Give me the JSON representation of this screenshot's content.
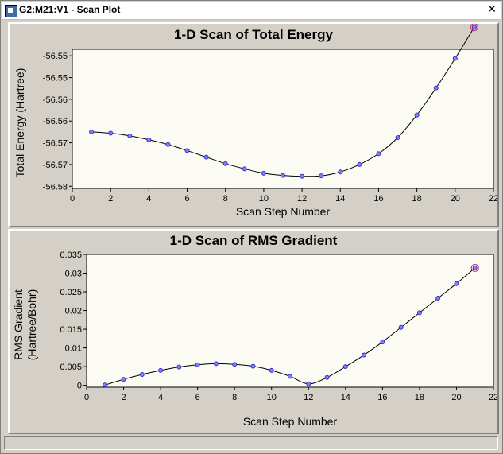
{
  "window": {
    "title": "G2:M21:V1 - Scan Plot",
    "close_label": "✕"
  },
  "chart_data": [
    {
      "type": "line",
      "title": "1-D Scan of Total Energy",
      "xlabel": "Scan Step Number",
      "ylabel": "Total Energy (Hartree)",
      "xlim": [
        0,
        22
      ],
      "ylim": [
        -56.5805,
        -56.5485
      ],
      "x_ticks": [
        0,
        2,
        4,
        6,
        8,
        10,
        12,
        14,
        16,
        18,
        20,
        22
      ],
      "y_tick_values": [
        -56.58,
        -56.575,
        -56.57,
        -56.565,
        -56.56,
        -56.555,
        -56.55
      ],
      "y_tick_labels": [
        "-56.58",
        "-56.57",
        "-56.57",
        "-56.56",
        "-56.56",
        "-56.55",
        "-56.55"
      ],
      "x": [
        1,
        2,
        3,
        4,
        5,
        6,
        7,
        8,
        9,
        10,
        11,
        12,
        13,
        14,
        15,
        16,
        17,
        18,
        19,
        20,
        21
      ],
      "values": [
        -56.5675,
        -56.5678,
        -56.5684,
        -56.5693,
        -56.5704,
        -56.5718,
        -56.5733,
        -56.5748,
        -56.576,
        -56.577,
        -56.5775,
        -56.5777,
        -56.5776,
        -56.5767,
        -56.575,
        -56.5725,
        -56.5688,
        -56.5636,
        -56.5574,
        -56.5506,
        -56.5434
      ],
      "highlight_index": 20,
      "grid": false,
      "line_color": "#000000",
      "marker_color": "#3333cc",
      "highlight_color": "#cc3366"
    },
    {
      "type": "line",
      "title": "1-D Scan of RMS Gradient",
      "xlabel": "Scan Step Number",
      "ylabel_lines": [
        "RMS Gradient",
        "(Hartree/Bohr)"
      ],
      "xlim": [
        0,
        22
      ],
      "ylim": [
        -0.0005,
        0.035
      ],
      "x_ticks": [
        0,
        2,
        4,
        6,
        8,
        10,
        12,
        14,
        16,
        18,
        20,
        22
      ],
      "y_tick_values": [
        0,
        0.005,
        0.01,
        0.015,
        0.02,
        0.025,
        0.03,
        0.035
      ],
      "y_tick_labels": [
        "0",
        "0.005",
        "0.01",
        "0.015",
        "0.02",
        "0.025",
        "0.03",
        "0.035"
      ],
      "x": [
        1,
        2,
        3,
        4,
        5,
        6,
        7,
        8,
        9,
        10,
        11,
        12,
        13,
        14,
        15,
        16,
        17,
        18,
        19,
        20,
        21
      ],
      "values": [
        0.0001,
        0.0016,
        0.0029,
        0.004,
        0.0049,
        0.0055,
        0.0058,
        0.0056,
        0.0051,
        0.004,
        0.0024,
        0.0004,
        0.0021,
        0.005,
        0.0081,
        0.0116,
        0.0155,
        0.0194,
        0.0233,
        0.0272,
        0.0314
      ],
      "highlight_index": 20,
      "grid": false,
      "line_color": "#000000",
      "marker_color": "#3333cc",
      "highlight_color": "#cc3366"
    }
  ]
}
